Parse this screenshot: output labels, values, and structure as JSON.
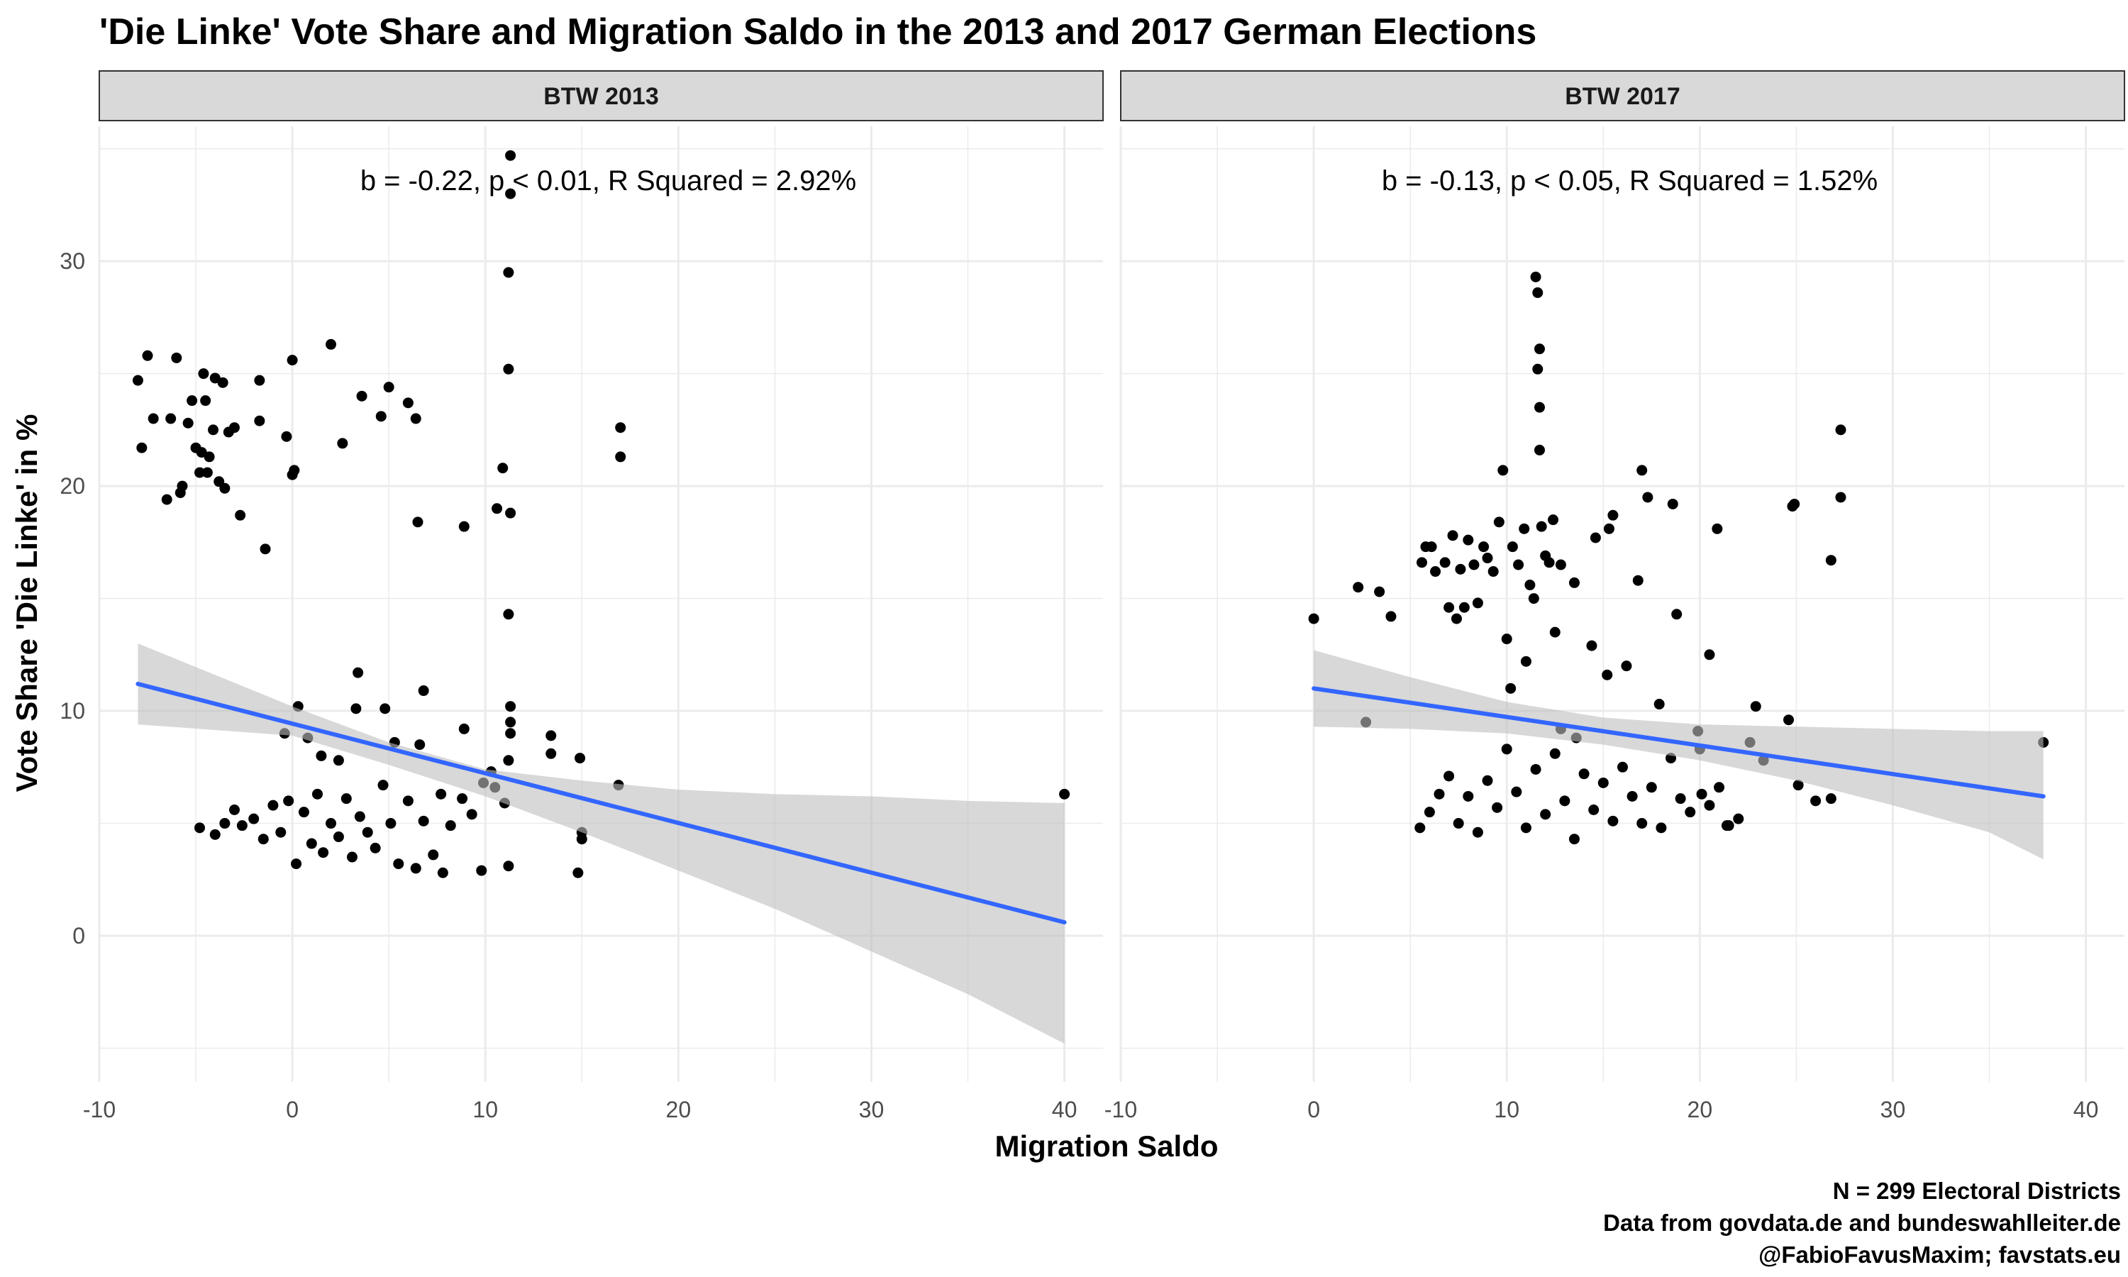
{
  "title": "'Die Linke' Vote Share and Migration Saldo in the 2013 and 2017 German Elections",
  "xlabel": "Migration Saldo",
  "ylabel": "Vote Share 'Die Linke' in %",
  "caption": [
    "N = 299 Electoral Districts",
    "Data from govdata.de and bundeswahlleiter.de",
    "@FabioFavusMaxim; favstats.eu"
  ],
  "colors": {
    "points": "#000000",
    "fit_line": "#3366FF",
    "ribbon": "#BEBEBE",
    "strip": "#D9D9D9",
    "grid": "#EBEBEB"
  },
  "chart_data": [
    {
      "type": "scatter",
      "panel": "BTW 2013",
      "annotation": "b = -0.22, p < 0.01, R Squared = 2.92%",
      "xlim": [
        -10,
        42
      ],
      "ylim": [
        -6.5,
        36
      ],
      "x_ticks": [
        -10,
        0,
        10,
        20,
        30,
        40
      ],
      "y_ticks": [
        0,
        10,
        20,
        30
      ],
      "grid": true,
      "fit_line": {
        "x": [
          -8,
          40
        ],
        "y": [
          11.2,
          0.6
        ]
      },
      "ribbon": {
        "x": [
          -8,
          0,
          5,
          10,
          15,
          20,
          25,
          30,
          35,
          40
        ],
        "lower": [
          9.4,
          8.9,
          7.6,
          6.2,
          4.6,
          2.9,
          1.2,
          -0.7,
          -2.6,
          -4.8
        ],
        "upper": [
          13.0,
          10.2,
          8.6,
          7.4,
          6.9,
          6.5,
          6.3,
          6.2,
          6.0,
          5.9
        ]
      },
      "points": [
        [
          -8,
          24.7
        ],
        [
          -7.8,
          21.7
        ],
        [
          -7.5,
          25.8
        ],
        [
          -7.2,
          23.0
        ],
        [
          -6.5,
          19.4
        ],
        [
          -6.3,
          23.0
        ],
        [
          -6.0,
          25.7
        ],
        [
          -5.8,
          19.7
        ],
        [
          -5.7,
          20.0
        ],
        [
          -5.4,
          22.8
        ],
        [
          -5.2,
          23.8
        ],
        [
          -5.0,
          21.7
        ],
        [
          -4.8,
          20.6
        ],
        [
          -4.7,
          21.5
        ],
        [
          -4.6,
          25.0
        ],
        [
          -4.5,
          23.8
        ],
        [
          -4.4,
          20.6
        ],
        [
          -4.3,
          21.3
        ],
        [
          -4.1,
          22.5
        ],
        [
          -4.0,
          24.8
        ],
        [
          -3.8,
          20.2
        ],
        [
          -3.6,
          24.6
        ],
        [
          -3.5,
          19.9
        ],
        [
          -3.3,
          22.4
        ],
        [
          -3.0,
          22.6
        ],
        [
          -2.7,
          18.7
        ],
        [
          -1.7,
          24.7
        ],
        [
          -1.4,
          17.2
        ],
        [
          -1.7,
          22.9
        ],
        [
          -0.3,
          22.2
        ],
        [
          0.0,
          25.6
        ],
        [
          0.0,
          20.5
        ],
        [
          0.1,
          20.7
        ],
        [
          2.0,
          26.3
        ],
        [
          2.6,
          21.9
        ],
        [
          3.6,
          24.0
        ],
        [
          4.6,
          23.1
        ],
        [
          5.0,
          24.4
        ],
        [
          6.0,
          23.7
        ],
        [
          6.4,
          23.0
        ],
        [
          6.5,
          18.4
        ],
        [
          8.9,
          18.2
        ],
        [
          10.6,
          19.0
        ],
        [
          10.9,
          20.8
        ],
        [
          11.3,
          34.7
        ],
        [
          11.3,
          33.0
        ],
        [
          11.2,
          29.5
        ],
        [
          11.2,
          25.2
        ],
        [
          11.3,
          18.8
        ],
        [
          11.2,
          14.3
        ],
        [
          17.0,
          22.6
        ],
        [
          17.0,
          21.3
        ],
        [
          40.0,
          6.3
        ],
        [
          -4.8,
          4.8
        ],
        [
          -4.0,
          4.5
        ],
        [
          -3.5,
          5.0
        ],
        [
          -3.0,
          5.6
        ],
        [
          -2.6,
          4.9
        ],
        [
          -2.0,
          5.2
        ],
        [
          -1.5,
          4.3
        ],
        [
          -1.0,
          5.8
        ],
        [
          -0.6,
          4.6
        ],
        [
          -0.2,
          6.0
        ],
        [
          0.2,
          3.2
        ],
        [
          0.6,
          5.5
        ],
        [
          1.0,
          4.1
        ],
        [
          1.3,
          6.3
        ],
        [
          1.6,
          3.7
        ],
        [
          2.0,
          5.0
        ],
        [
          2.4,
          4.4
        ],
        [
          2.8,
          6.1
        ],
        [
          3.1,
          3.5
        ],
        [
          3.5,
          5.3
        ],
        [
          3.9,
          4.6
        ],
        [
          4.3,
          3.9
        ],
        [
          4.7,
          6.7
        ],
        [
          5.1,
          5.0
        ],
        [
          5.5,
          3.2
        ],
        [
          6.0,
          6.0
        ],
        [
          6.4,
          3.0
        ],
        [
          6.8,
          5.1
        ],
        [
          7.3,
          3.6
        ],
        [
          7.7,
          6.3
        ],
        [
          8.2,
          4.9
        ],
        [
          8.8,
          6.1
        ],
        [
          9.3,
          5.4
        ],
        [
          9.9,
          6.8
        ],
        [
          10.5,
          6.6
        ],
        [
          11.0,
          5.9
        ],
        [
          -0.4,
          9.0
        ],
        [
          0.3,
          10.2
        ],
        [
          0.8,
          8.8
        ],
        [
          1.5,
          8.0
        ],
        [
          2.4,
          7.8
        ],
        [
          3.3,
          10.1
        ],
        [
          3.4,
          11.7
        ],
        [
          4.8,
          10.1
        ],
        [
          5.3,
          8.6
        ],
        [
          6.8,
          10.9
        ],
        [
          6.6,
          8.5
        ],
        [
          8.9,
          9.2
        ],
        [
          10.3,
          7.3
        ],
        [
          11.3,
          10.2
        ],
        [
          11.3,
          9.5
        ],
        [
          11.3,
          9.0
        ],
        [
          11.2,
          7.8
        ],
        [
          13.4,
          8.9
        ],
        [
          13.4,
          8.1
        ],
        [
          14.9,
          7.9
        ],
        [
          15.0,
          4.6
        ],
        [
          15.0,
          4.3
        ],
        [
          14.8,
          2.8
        ],
        [
          16.9,
          6.7
        ],
        [
          11.2,
          3.1
        ],
        [
          9.8,
          2.9
        ],
        [
          7.8,
          2.8
        ]
      ]
    },
    {
      "type": "scatter",
      "panel": "BTW 2017",
      "annotation": "b = -0.13, p < 0.05, R Squared = 1.52%",
      "xlim": [
        -10,
        42
      ],
      "ylim": [
        -6.5,
        36
      ],
      "x_ticks": [
        -10,
        0,
        10,
        20,
        30,
        40
      ],
      "y_ticks": [
        0,
        10,
        20,
        30
      ],
      "grid": true,
      "fit_line": {
        "x": [
          0,
          37.8
        ],
        "y": [
          11.0,
          6.2
        ]
      },
      "ribbon": {
        "x": [
          0,
          5,
          10,
          15,
          20,
          25,
          30,
          35,
          37.8
        ],
        "lower": [
          9.3,
          9.2,
          9.0,
          8.5,
          7.8,
          6.9,
          5.8,
          4.6,
          3.4
        ],
        "upper": [
          12.7,
          11.5,
          10.4,
          9.7,
          9.4,
          9.3,
          9.2,
          9.1,
          9.1
        ]
      },
      "points": [
        [
          0.0,
          14.1
        ],
        [
          2.3,
          15.5
        ],
        [
          2.7,
          9.5
        ],
        [
          3.4,
          15.3
        ],
        [
          4.0,
          14.2
        ],
        [
          5.6,
          16.6
        ],
        [
          5.8,
          17.3
        ],
        [
          6.1,
          17.3
        ],
        [
          6.3,
          16.2
        ],
        [
          6.8,
          16.6
        ],
        [
          7.0,
          14.6
        ],
        [
          7.2,
          17.8
        ],
        [
          7.4,
          14.1
        ],
        [
          7.6,
          16.3
        ],
        [
          7.8,
          14.6
        ],
        [
          8.0,
          17.6
        ],
        [
          8.3,
          16.5
        ],
        [
          8.5,
          14.8
        ],
        [
          8.8,
          17.3
        ],
        [
          9.0,
          16.8
        ],
        [
          9.3,
          16.2
        ],
        [
          9.6,
          18.4
        ],
        [
          9.8,
          20.7
        ],
        [
          10.0,
          13.2
        ],
        [
          10.3,
          17.3
        ],
        [
          10.6,
          16.5
        ],
        [
          10.9,
          18.1
        ],
        [
          11.2,
          15.6
        ],
        [
          11.4,
          15.0
        ],
        [
          11.5,
          29.3
        ],
        [
          11.6,
          28.6
        ],
        [
          11.7,
          26.1
        ],
        [
          11.6,
          25.2
        ],
        [
          11.7,
          23.5
        ],
        [
          11.7,
          21.6
        ],
        [
          11.8,
          18.2
        ],
        [
          12.0,
          16.9
        ],
        [
          12.2,
          16.6
        ],
        [
          12.4,
          18.5
        ],
        [
          12.8,
          16.5
        ],
        [
          13.5,
          15.7
        ],
        [
          14.6,
          17.7
        ],
        [
          15.3,
          18.1
        ],
        [
          15.5,
          18.7
        ],
        [
          16.8,
          15.8
        ],
        [
          17.0,
          20.7
        ],
        [
          17.3,
          19.5
        ],
        [
          18.6,
          19.2
        ],
        [
          18.8,
          14.3
        ],
        [
          20.5,
          12.5
        ],
        [
          20.9,
          18.1
        ],
        [
          24.8,
          19.1
        ],
        [
          24.9,
          19.2
        ],
        [
          26.8,
          16.7
        ],
        [
          27.3,
          22.5
        ],
        [
          27.3,
          19.5
        ],
        [
          37.8,
          8.6
        ],
        [
          5.5,
          4.8
        ],
        [
          6.0,
          5.5
        ],
        [
          6.5,
          6.3
        ],
        [
          7.0,
          7.1
        ],
        [
          7.5,
          5.0
        ],
        [
          8.0,
          6.2
        ],
        [
          8.5,
          4.6
        ],
        [
          9.0,
          6.9
        ],
        [
          9.5,
          5.7
        ],
        [
          10.0,
          8.3
        ],
        [
          10.5,
          6.4
        ],
        [
          11.0,
          4.8
        ],
        [
          11.5,
          7.4
        ],
        [
          12.0,
          5.4
        ],
        [
          12.5,
          8.1
        ],
        [
          13.0,
          6.0
        ],
        [
          13.5,
          4.3
        ],
        [
          14.0,
          7.2
        ],
        [
          14.5,
          5.6
        ],
        [
          15.0,
          6.8
        ],
        [
          15.5,
          5.1
        ],
        [
          16.0,
          7.5
        ],
        [
          16.5,
          6.2
        ],
        [
          17.0,
          5.0
        ],
        [
          17.5,
          6.6
        ],
        [
          18.0,
          4.8
        ],
        [
          18.5,
          7.9
        ],
        [
          19.0,
          6.1
        ],
        [
          19.5,
          5.5
        ],
        [
          20.0,
          8.3
        ],
        [
          20.5,
          5.8
        ],
        [
          21.0,
          6.6
        ],
        [
          21.5,
          4.9
        ],
        [
          22.0,
          5.2
        ],
        [
          10.2,
          11.0
        ],
        [
          11.0,
          12.2
        ],
        [
          12.5,
          13.5
        ],
        [
          14.4,
          12.9
        ],
        [
          15.2,
          11.6
        ],
        [
          16.2,
          12.0
        ],
        [
          17.9,
          10.3
        ],
        [
          19.9,
          9.1
        ],
        [
          22.9,
          10.2
        ],
        [
          24.6,
          9.6
        ],
        [
          22.6,
          8.6
        ],
        [
          23.3,
          7.8
        ],
        [
          25.1,
          6.7
        ],
        [
          26.0,
          6.0
        ],
        [
          26.8,
          6.1
        ],
        [
          21.4,
          4.9
        ],
        [
          20.1,
          6.3
        ],
        [
          12.8,
          9.2
        ],
        [
          13.6,
          8.8
        ]
      ]
    }
  ]
}
